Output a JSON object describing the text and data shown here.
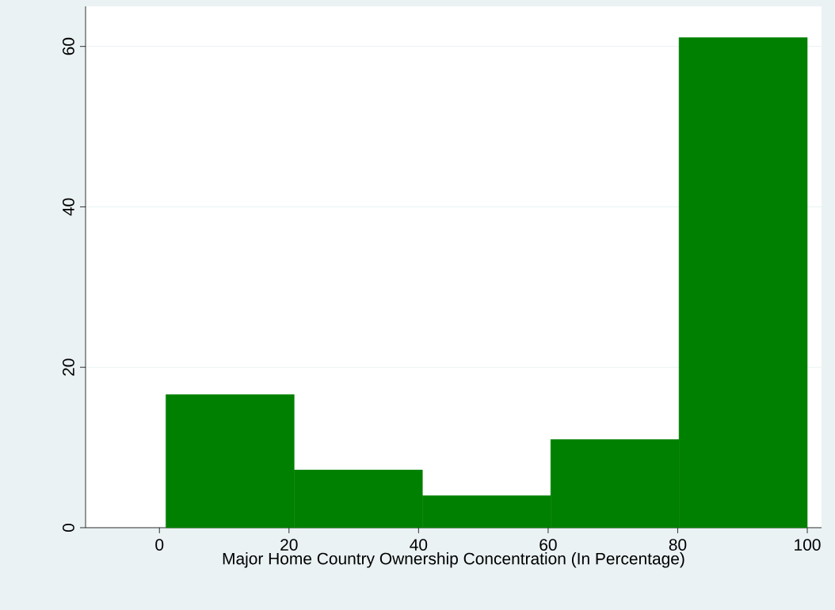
{
  "chart_data": {
    "type": "histogram",
    "xlabel": "Major Home Country Ownership Concentration (In Percentage)",
    "bins": [
      1,
      20.8,
      40.6,
      60.4,
      80.2,
      100
    ],
    "values": [
      16.6,
      7.2,
      4.0,
      11.0,
      61.1
    ],
    "color": "#008000",
    "xlim": [
      -11.4,
      102.2
    ],
    "ylim": [
      0,
      65
    ],
    "xticks": [
      0,
      20,
      40,
      60,
      80,
      100
    ],
    "yticks": [
      0,
      20,
      40,
      60
    ],
    "grid": "y"
  }
}
